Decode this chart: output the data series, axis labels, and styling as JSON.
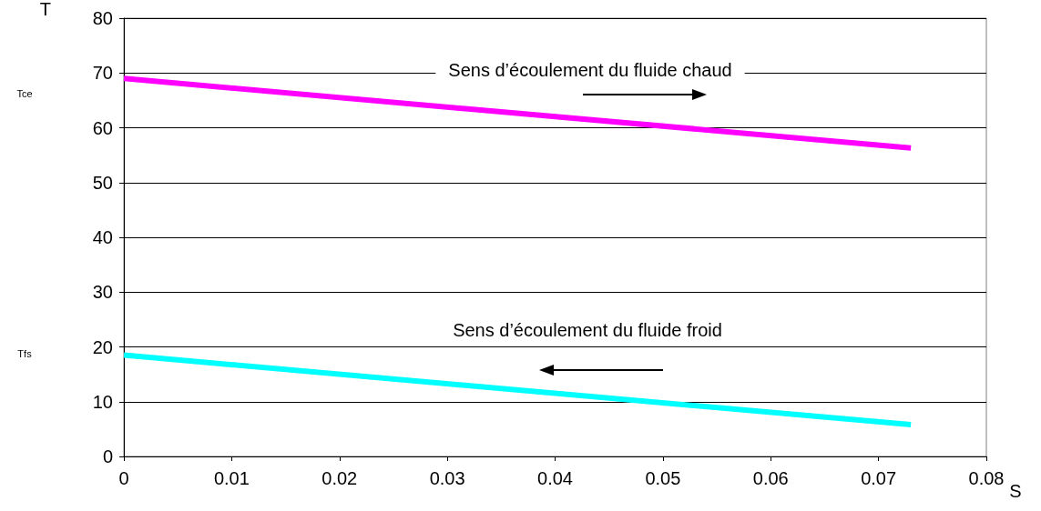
{
  "chart_data": {
    "type": "line",
    "xlabel": "S",
    "ylabel": "T",
    "series": [
      {
        "color": "#ff00ff",
        "values": [
          69,
          56.3
        ]
      },
      {
        "color": "#00ffff",
        "values": [
          18.5,
          5.8
        ]
      }
    ],
    "x": [
      0,
      0.073
    ],
    "xlim": [
      0,
      0.08
    ],
    "xticks": [
      0,
      0.01,
      0.02,
      0.03,
      0.04,
      0.05,
      0.06,
      0.07,
      0.08
    ],
    "ylim": [
      0,
      80
    ],
    "yticks": [
      0,
      10,
      20,
      30,
      40,
      50,
      60,
      70,
      80
    ],
    "grid": "y",
    "marker": "none",
    "line_style": "solid",
    "annotations": [
      "Sens d’écoulement du fluide chaud",
      "Sens d’écoulement du fluide froid",
      "Tce",
      "Tfs"
    ]
  }
}
